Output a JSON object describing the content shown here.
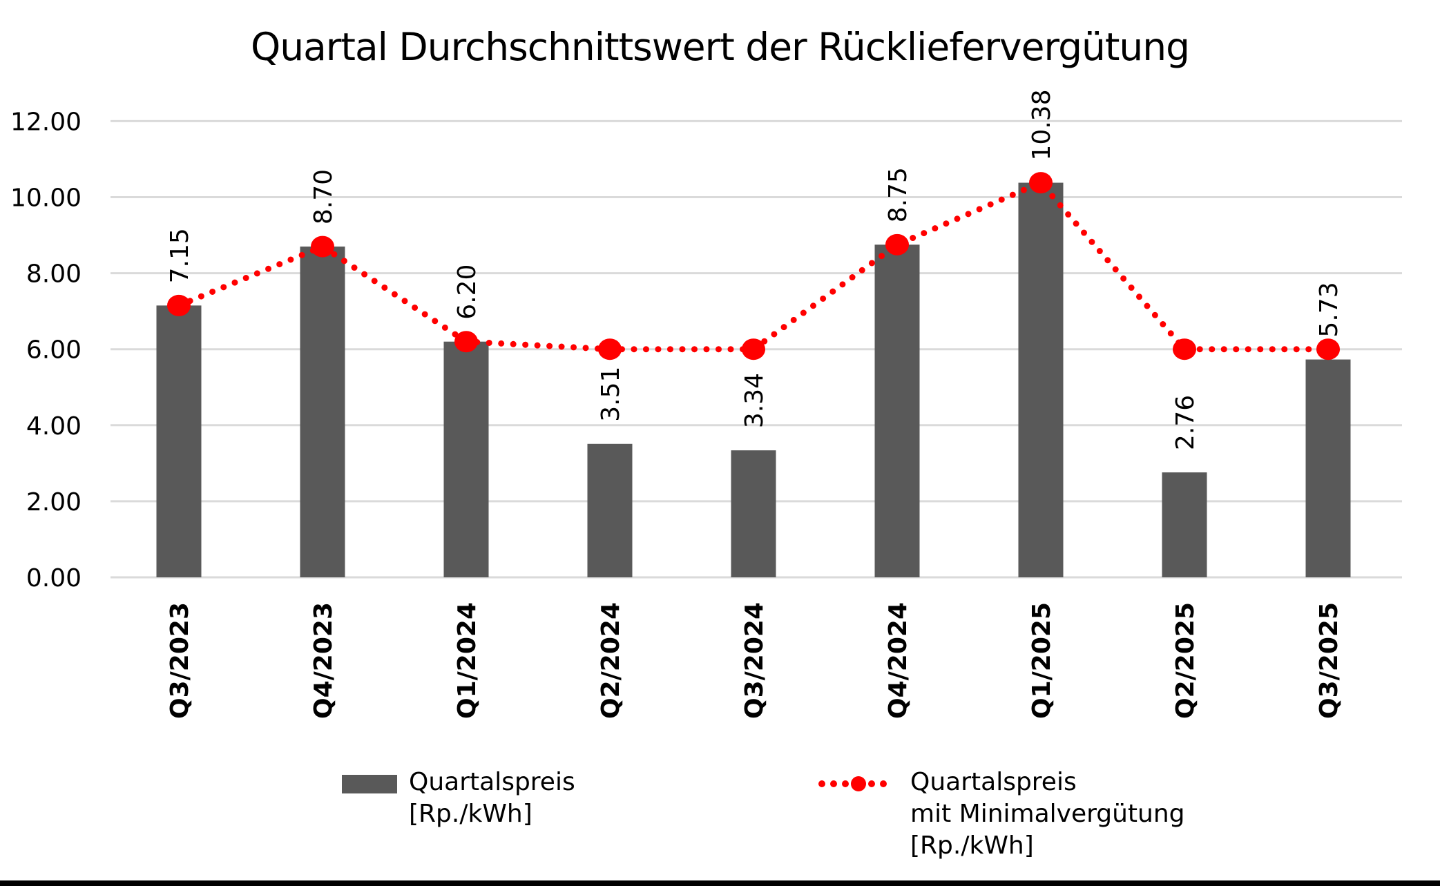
{
  "title": "Quartal Durchschnittswert der Rückliefervergütung",
  "chart_data": {
    "type": "combo_bar_line",
    "categories": [
      "Q3/2023",
      "Q4/2023",
      "Q1/2024",
      "Q2/2024",
      "Q3/2024",
      "Q4/2024",
      "Q1/2025",
      "Q2/2025",
      "Q3/2025"
    ],
    "series": [
      {
        "name": "Quartalspreis [Rp./kWh]",
        "type": "bar",
        "color": "#595959",
        "values": [
          7.15,
          8.7,
          6.2,
          3.51,
          3.34,
          8.75,
          10.38,
          2.76,
          5.73
        ],
        "value_labels": [
          "7.15",
          "8.70",
          "6.20",
          "3.51",
          "3.34",
          "8.75",
          "10.38",
          "2.76",
          "5.73"
        ]
      },
      {
        "name": "Quartalspreis mit Minimalvergütung [Rp./kWh]",
        "type": "dotted_line",
        "color": "#FF0000",
        "values": [
          7.15,
          8.7,
          6.2,
          6.0,
          6.0,
          8.75,
          10.38,
          6.0,
          6.0
        ]
      }
    ],
    "ylim": [
      0,
      12
    ],
    "y_ticks": [
      {
        "value": 0,
        "label": "0.00"
      },
      {
        "value": 2,
        "label": "2.00"
      },
      {
        "value": 4,
        "label": "4.00"
      },
      {
        "value": 6,
        "label": "6.00"
      },
      {
        "value": 8,
        "label": "8.00"
      },
      {
        "value": 10,
        "label": "10.00"
      },
      {
        "value": 12,
        "label": "12.00"
      }
    ],
    "grid": "horizontal",
    "legend_position": "bottom"
  },
  "legend": {
    "items": [
      {
        "swatch": "bar",
        "label_lines": [
          "Quartalspreis",
          "[Rp./kWh]"
        ]
      },
      {
        "swatch": "dotted-line",
        "label_lines": [
          "Quartalspreis",
          "mit Minimalvergütung",
          "[Rp./kWh]"
        ]
      }
    ]
  },
  "colors": {
    "bar": "#595959",
    "line_red": "#FF0000",
    "gridline": "#DADADA",
    "text": "#000000",
    "background": "#FFFFFF",
    "bottom_bar": "#000000"
  }
}
